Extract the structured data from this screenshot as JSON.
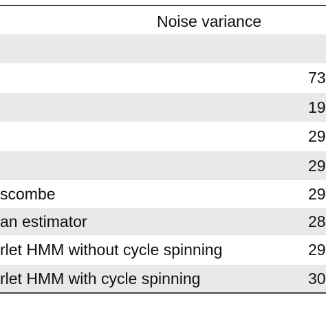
{
  "table": {
    "header": "Noise variance",
    "rows": [
      {
        "value": "73"
      },
      {
        "value": "19"
      },
      {
        "value": "29"
      },
      {
        "value": "29"
      },
      {
        "label": "scombe",
        "value": "29"
      },
      {
        "label": "an estimator",
        "value": "28"
      },
      {
        "label": "rlet HMM without cycle spinning",
        "value": "29"
      },
      {
        "label": "rlet HMM with cycle spinning",
        "value": "30"
      }
    ]
  }
}
